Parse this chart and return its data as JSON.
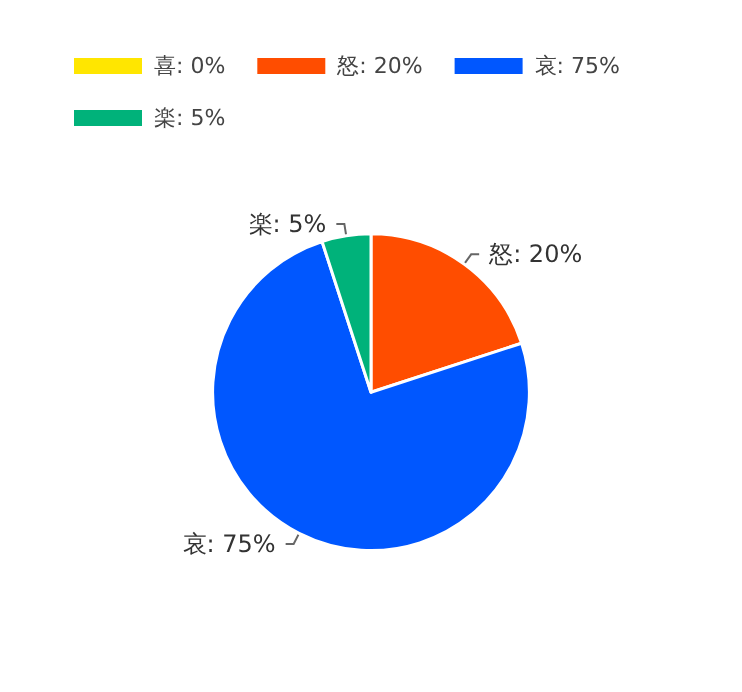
{
  "chart_data": {
    "type": "pie",
    "categories": [
      "喜",
      "怒",
      "哀",
      "楽"
    ],
    "values": [
      0,
      20,
      75,
      5
    ],
    "value_labels": [
      "0%",
      "20%",
      "75%",
      "5%"
    ],
    "colors": [
      "#ffe600",
      "#ff4d00",
      "#0057ff",
      "#00b27a"
    ],
    "legend": "top left"
  }
}
